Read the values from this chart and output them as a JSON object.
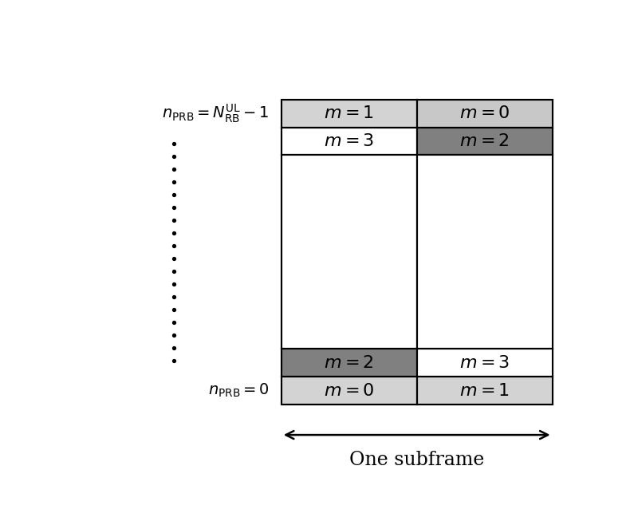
{
  "fig_width": 7.9,
  "fig_height": 6.58,
  "dpi": 100,
  "color_light_gray": "#d3d3d3",
  "color_dark_gray": "#808080",
  "color_white": "#ffffff",
  "cell_border_color": "#000000",
  "cell_border_lw": 1.5,
  "cells": [
    {
      "row": 4,
      "col": 0,
      "color": "#d3d3d3",
      "label": "m=1"
    },
    {
      "row": 4,
      "col": 1,
      "color": "#c8c8c8",
      "label": "m=0"
    },
    {
      "row": 3,
      "col": 0,
      "color": "#ffffff",
      "label": "m=3"
    },
    {
      "row": 3,
      "col": 1,
      "color": "#808080",
      "label": "m=2"
    },
    {
      "row": 2,
      "col": 0,
      "color": "#ffffff",
      "label": ""
    },
    {
      "row": 2,
      "col": 1,
      "color": "#ffffff",
      "label": ""
    },
    {
      "row": 1,
      "col": 0,
      "color": "#808080",
      "label": "m=2"
    },
    {
      "row": 1,
      "col": 1,
      "color": "#ffffff",
      "label": "m=3"
    },
    {
      "row": 0,
      "col": 0,
      "color": "#d3d3d3",
      "label": "m=0"
    },
    {
      "row": 0,
      "col": 1,
      "color": "#d3d3d3",
      "label": "m=1"
    }
  ],
  "arrow_label": "One subframe",
  "font_size_cell": 16,
  "font_size_label": 14,
  "font_size_arrow": 17,
  "n_dots": 18
}
